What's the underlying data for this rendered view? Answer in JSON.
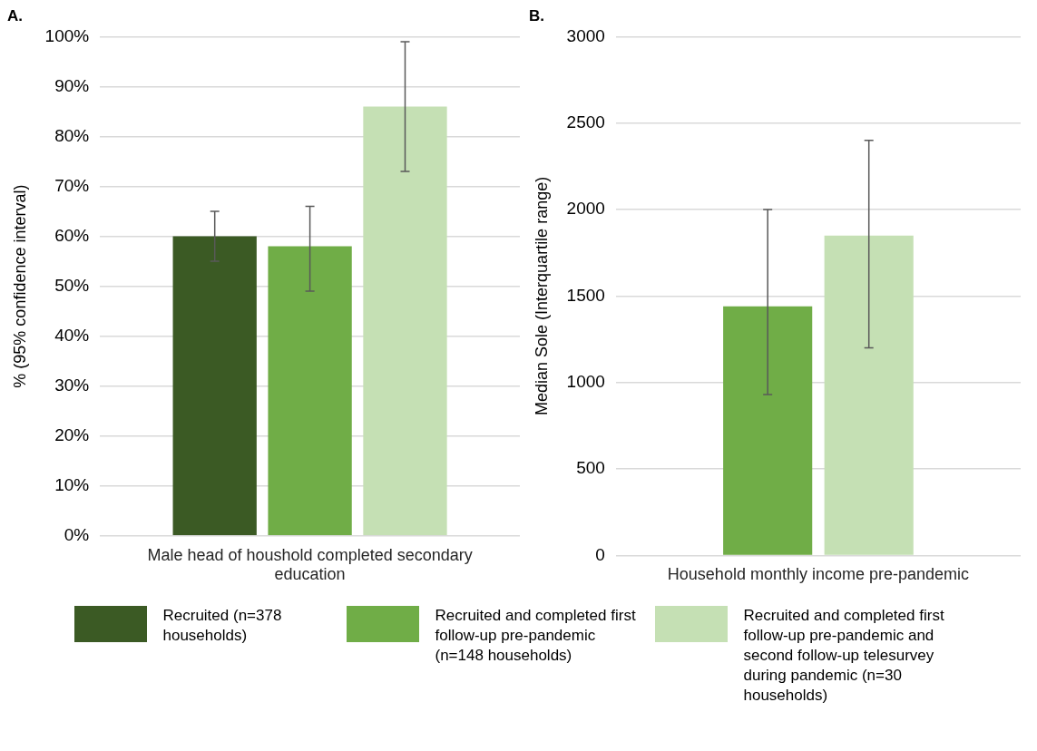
{
  "chart_data": [
    {
      "type": "bar",
      "title": "A.",
      "ylabel": "% (95% confidence interval)",
      "categories": [
        "Male head of houshold completed secondary education"
      ],
      "series": [
        {
          "name": "Recruited (n=378 households)",
          "color": "#3b5a24",
          "values": [
            60
          ],
          "errors": [
            [
              55,
              65
            ]
          ]
        },
        {
          "name": "Recruited and completed first follow-up pre-pandemic (n=148 households)",
          "color": "#70ad47",
          "values": [
            58
          ],
          "errors": [
            [
              49,
              66
            ]
          ]
        },
        {
          "name": "Recruited and completed first follow-up pre-pandemic and second follow-up telesurvey during pandemic (n=30 households)",
          "color": "#c5e0b4",
          "values": [
            86
          ],
          "errors": [
            [
              73,
              99
            ]
          ]
        }
      ],
      "ylim": [
        0,
        100
      ],
      "yticks": [
        {
          "value": 0,
          "label": "0%"
        },
        {
          "value": 10,
          "label": "10%"
        },
        {
          "value": 20,
          "label": "20%"
        },
        {
          "value": 30,
          "label": "30%"
        },
        {
          "value": 40,
          "label": "40%"
        },
        {
          "value": 50,
          "label": "50%"
        },
        {
          "value": 60,
          "label": "60%"
        },
        {
          "value": 70,
          "label": "70%"
        },
        {
          "value": 80,
          "label": "80%"
        },
        {
          "value": 90,
          "label": "90%"
        },
        {
          "value": 100,
          "label": "100%"
        }
      ],
      "grid": "y",
      "legend": "bottom"
    },
    {
      "type": "bar",
      "title": "B.",
      "ylabel": "Median Sole (Interquartile range)",
      "categories": [
        "Household monthly income pre-pandemic"
      ],
      "series": [
        {
          "color": "#70ad47",
          "values": [
            1440
          ],
          "errors": [
            [
              930,
              2000
            ]
          ]
        },
        {
          "color": "#c5e0b4",
          "values": [
            1850
          ],
          "errors": [
            [
              1200,
              2400
            ]
          ]
        }
      ],
      "ylim": [
        0,
        3000
      ],
      "yticks": [
        0,
        500,
        1000,
        1500,
        2000,
        2500,
        3000
      ],
      "grid": "y"
    }
  ]
}
